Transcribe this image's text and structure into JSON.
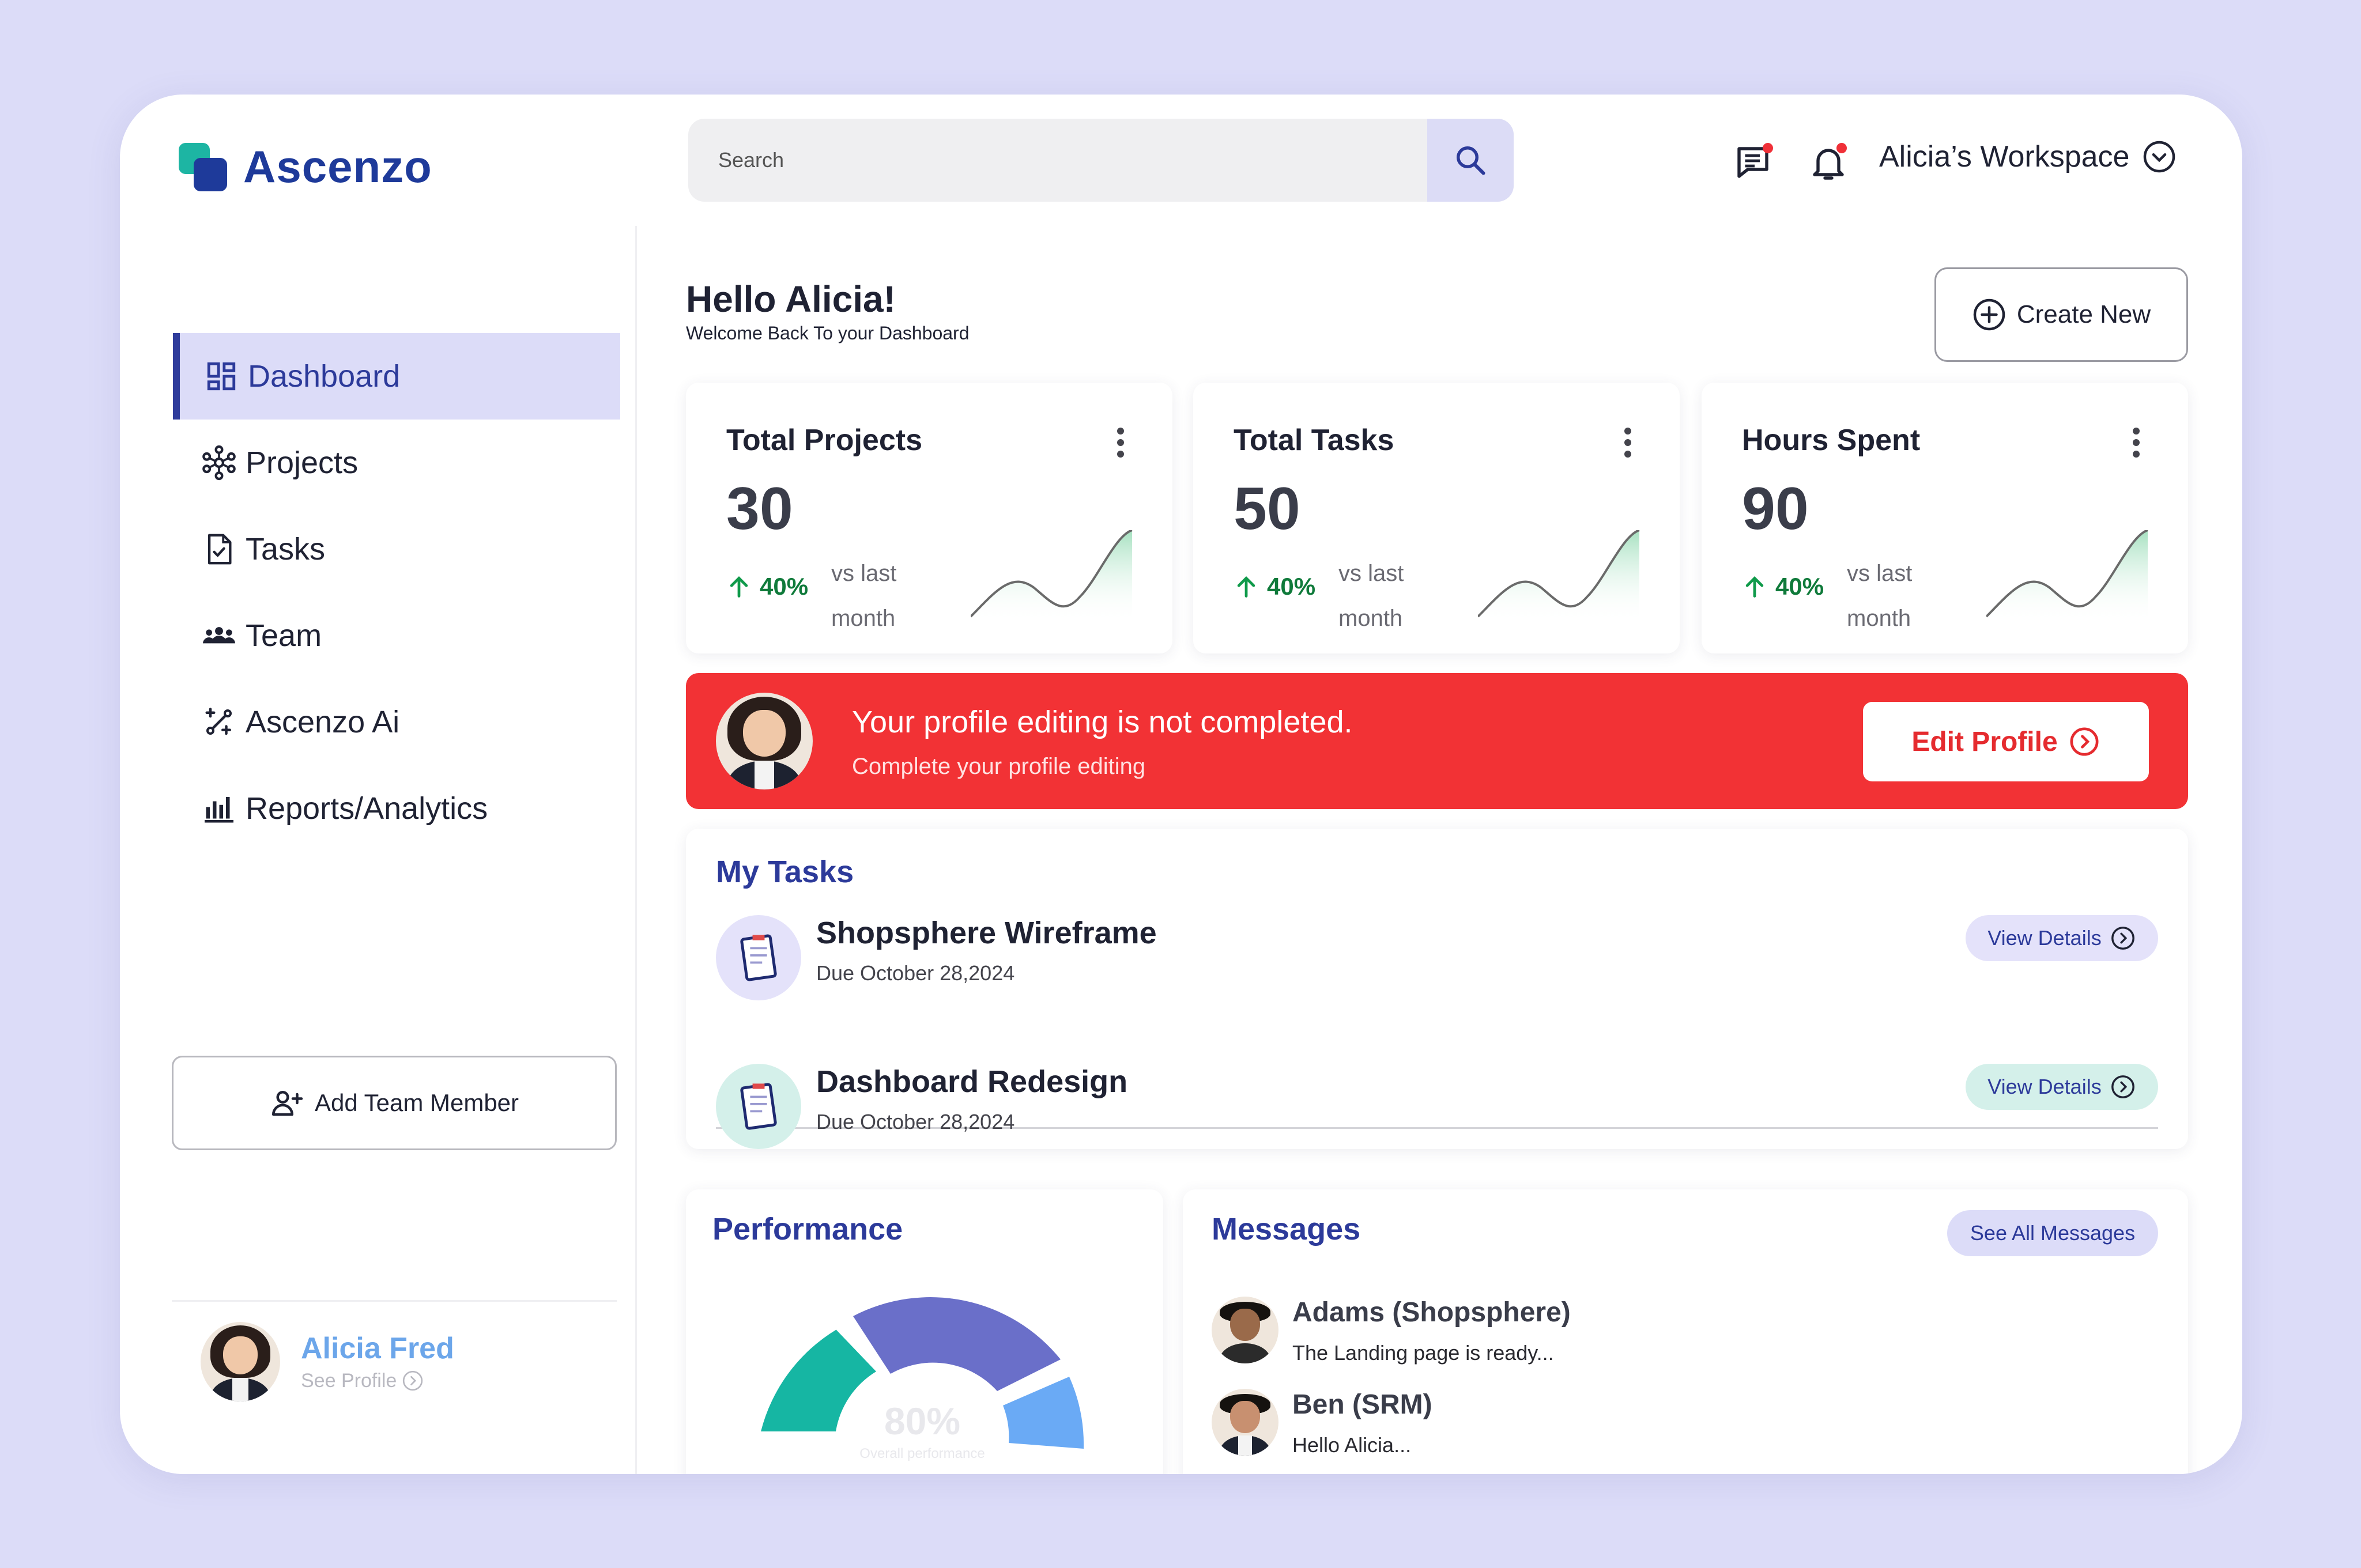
{
  "app": {
    "name": "Ascenzo"
  },
  "search": {
    "placeholder": "Search"
  },
  "header": {
    "workspace": "Alicia’s Workspace"
  },
  "sidebar": {
    "items": [
      {
        "label": "Dashboard",
        "icon": "dashboard-grid-icon",
        "active": true
      },
      {
        "label": "Projects",
        "icon": "network-icon"
      },
      {
        "label": "Tasks",
        "icon": "file-check-icon"
      },
      {
        "label": "Team",
        "icon": "team-icon"
      },
      {
        "label": "Ascenzo Ai",
        "icon": "ai-sparkle-icon"
      },
      {
        "label": "Reports/Analytics",
        "icon": "bar-chart-icon"
      }
    ],
    "add_member": "Add Team Member",
    "profile": {
      "name": "Alicia Fred",
      "link": "See Profile"
    }
  },
  "greeting": {
    "title": "Hello Alicia!",
    "subtitle": "Welcome Back To your Dashboard"
  },
  "create_new": "Create New",
  "stats": [
    {
      "title": "Total Projects",
      "value": "30",
      "change": "40%",
      "compare": "vs last month"
    },
    {
      "title": "Total Tasks",
      "value": "50",
      "change": "40%",
      "compare": "vs last month"
    },
    {
      "title": "Hours Spent",
      "value": "90",
      "change": "40%",
      "compare": "vs last month"
    }
  ],
  "banner": {
    "title": "Your profile editing is not completed.",
    "subtitle": "Complete your profile editing",
    "button": "Edit Profile"
  },
  "tasks": {
    "title": "My Tasks",
    "items": [
      {
        "name": "Shopsphere Wireframe",
        "due": "Due October 28,2024",
        "action": "View Details",
        "accent": "#e4e2fa"
      },
      {
        "name": "Dashboard Redesign",
        "due": "Due October 28,2024",
        "action": "View Details",
        "accent": "#d4f0ea"
      }
    ]
  },
  "performance": {
    "title": "Performance",
    "percent": "80%",
    "caption": "Overall performance",
    "colors": [
      "#16b6a3",
      "#6a6fc9",
      "#6aaaf5"
    ]
  },
  "messages": {
    "title": "Messages",
    "see_all": "See All Messages",
    "items": [
      {
        "from": "Adams (Shopsphere)",
        "preview": "The Landing page is ready..."
      },
      {
        "from": "Ben (SRM)",
        "preview": "Hello Alicia..."
      }
    ]
  },
  "colors": {
    "brand": "#1e3a9a",
    "accent_teal": "#1db5a3",
    "alert": "#f23235",
    "positive": "#0f7a3a"
  }
}
